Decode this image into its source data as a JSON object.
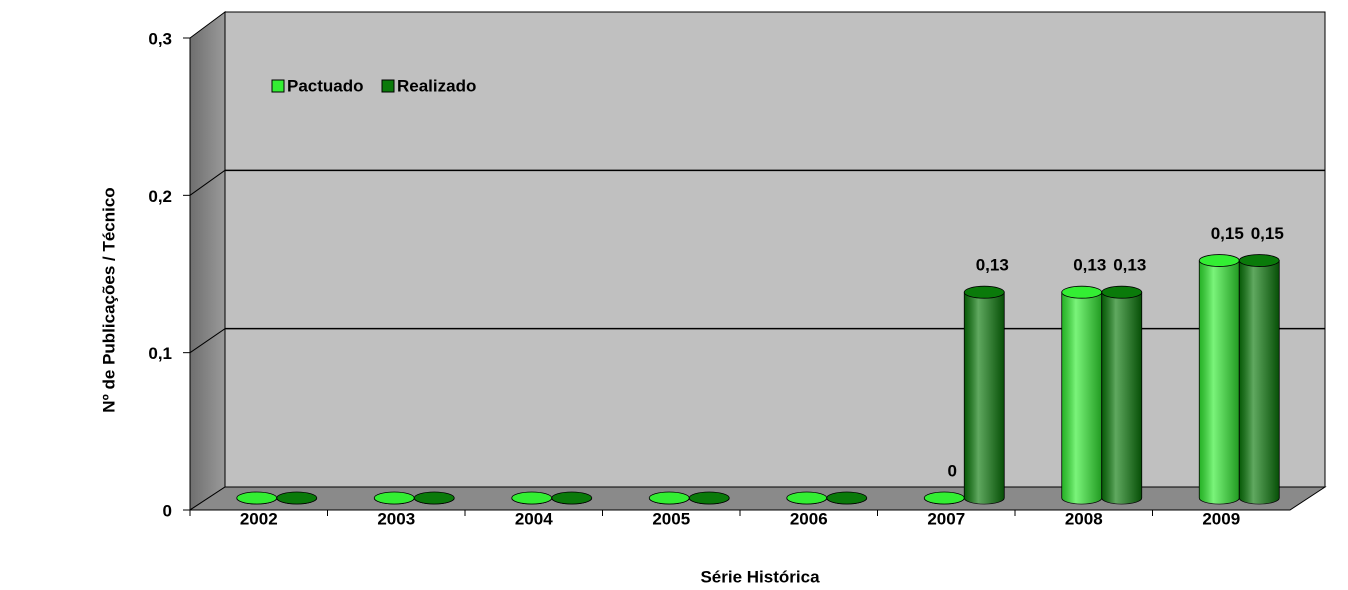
{
  "chart_data": {
    "type": "bar",
    "x_label": "Série Histórica",
    "y_label": "Nº de Publicações / Técnico",
    "categories": [
      "2002",
      "2003",
      "2004",
      "2005",
      "2006",
      "2007",
      "2008",
      "2009"
    ],
    "series": [
      {
        "name": "Pactuado",
        "color": "#33ee33",
        "values": [
          0,
          0,
          0,
          0,
          0,
          0,
          0.13,
          0.15
        ],
        "value_labels": [
          null,
          null,
          null,
          null,
          null,
          "0",
          "0,13",
          "0,15"
        ]
      },
      {
        "name": "Realizado",
        "color": "#0a7a0a",
        "values": [
          0,
          0,
          0,
          0,
          0,
          0.13,
          0.13,
          0.15
        ],
        "value_labels": [
          null,
          null,
          null,
          null,
          null,
          "0,13",
          "0,13",
          "0,15"
        ]
      }
    ],
    "ylim": [
      0,
      0.3
    ],
    "yticks": [
      0,
      {
        "value": 0.1,
        "label": "0,1"
      },
      {
        "value": 0.2,
        "label": "0,2"
      },
      {
        "value": 0.3,
        "label": "0,3"
      }
    ],
    "grid": true,
    "legend": "top-left"
  }
}
